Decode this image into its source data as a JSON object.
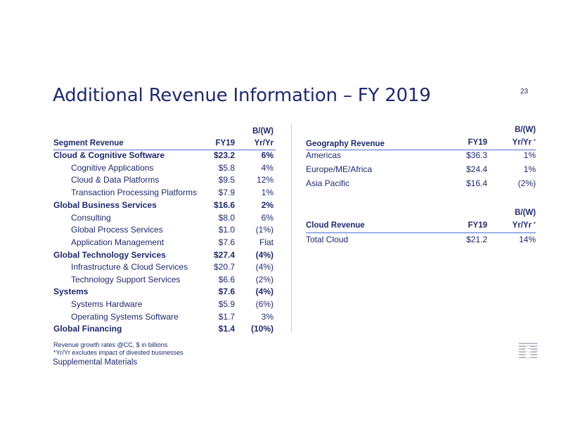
{
  "page": {
    "title": "Additional Revenue Information – FY 2019",
    "page_number": "23",
    "footnote_1": "Revenue growth rates @CC, $ in billions",
    "footnote_2": "*Yr/Yr excludes impact of divested businesses",
    "supplemental": "Supplemental Materials",
    "logo_text": "IBM"
  },
  "segment": {
    "headers": {
      "name": "Segment Revenue",
      "fy": "FY19",
      "bw_top": "B/(W)",
      "bw_bottom": "Yr/Yr"
    },
    "rows": [
      {
        "name": "Cloud & Cognitive Software",
        "fy": "$23.2",
        "bw": "6%"
      },
      {
        "name": "Cognitive Applications",
        "fy": "$5.8",
        "bw": "4%"
      },
      {
        "name": "Cloud & Data Platforms",
        "fy": "$9.5",
        "bw": "12%"
      },
      {
        "name": "Transaction Processing Platforms",
        "fy": "$7.9",
        "bw": "1%"
      },
      {
        "name": "Global Business Services",
        "fy": "$16.6",
        "bw": "2%"
      },
      {
        "name": "Consulting",
        "fy": "$8.0",
        "bw": "6%"
      },
      {
        "name": "Global Process Services",
        "fy": "$1.0",
        "bw": "(1%)"
      },
      {
        "name": "Application Management",
        "fy": "$7.6",
        "bw": "Flat"
      },
      {
        "name": "Global Technology Services",
        "fy": "$27.4",
        "bw": "(4%)"
      },
      {
        "name": "Infrastructure & Cloud Services",
        "fy": "$20.7",
        "bw": "(4%)"
      },
      {
        "name": "Technology Support Services",
        "fy": "$6.6",
        "bw": "(2%)"
      },
      {
        "name": "Systems",
        "fy": "$7.6",
        "bw": "(4%)"
      },
      {
        "name": "Systems Hardware",
        "fy": "$5.9",
        "bw": "(6%)"
      },
      {
        "name": "Operating Systems Software",
        "fy": "$1.7",
        "bw": "3%"
      },
      {
        "name": "Global Financing",
        "fy": "$1.4",
        "bw": "(10%)"
      }
    ]
  },
  "geography": {
    "headers": {
      "name": "Geography Revenue",
      "fy": "FY19",
      "bw_top": "B/(W)",
      "bw_bottom": "Yr/Yr",
      "asterisk": "*"
    },
    "rows": [
      {
        "name": "Americas",
        "fy": "$36.3",
        "bw": "1%"
      },
      {
        "name": "Europe/ME/Africa",
        "fy": "$24.4",
        "bw": "1%"
      },
      {
        "name": "Asia Pacific",
        "fy": "$16.4",
        "bw": "(2%)"
      }
    ]
  },
  "cloud": {
    "headers": {
      "name": "Cloud Revenue",
      "fy": "FY19",
      "bw_top": "B/(W)",
      "bw_bottom": "Yr/Yr",
      "asterisk": "*"
    },
    "rows": [
      {
        "name": "Total Cloud",
        "fy": "$21.2",
        "bw": "14%"
      }
    ]
  }
}
